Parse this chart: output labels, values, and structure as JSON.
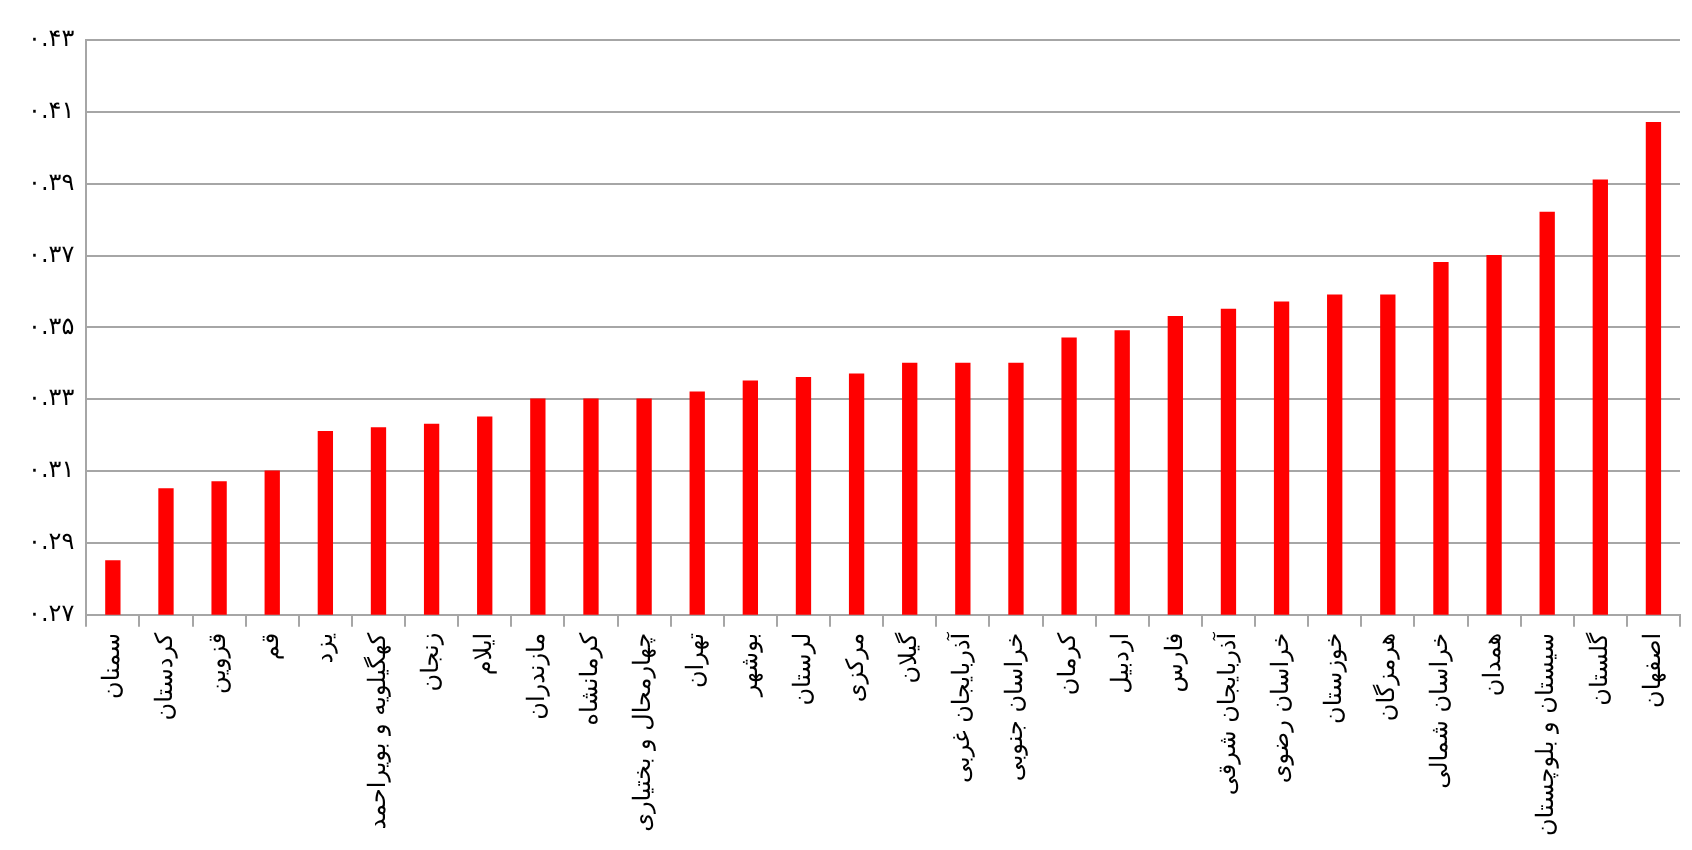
{
  "chart_data": {
    "type": "bar",
    "categories": [
      "سمنان",
      "کردستان",
      "قزوین",
      "قم",
      "یزد",
      "کهگیلویه و بویراحمد",
      "زنجان",
      "ایلام",
      "مازندران",
      "کرمانشاه",
      "چهارمحال و بختیاری",
      "تهران",
      "بوشهر",
      "لرستان",
      "مرکزی",
      "گیلان",
      "آذربایجان غربی",
      "خراسان جنوبی",
      "کرمان",
      "اردبیل",
      "فارس",
      "آذربایجان شرقی",
      "خراسان رضوی",
      "خوزستان",
      "هرمزگان",
      "خراسان شمالی",
      "همدان",
      "سیستان و بلوچستان",
      "گلستان",
      "اصفهان"
    ],
    "values": [
      0.285,
      0.305,
      0.307,
      0.31,
      0.321,
      0.322,
      0.323,
      0.325,
      0.33,
      0.33,
      0.33,
      0.332,
      0.335,
      0.336,
      0.337,
      0.34,
      0.34,
      0.34,
      0.347,
      0.349,
      0.353,
      0.355,
      0.357,
      0.359,
      0.359,
      0.368,
      0.37,
      0.382,
      0.391,
      0.407
    ],
    "color": "#ff0000",
    "ylim": [
      0.27,
      0.43
    ],
    "yticks": [
      {
        "value": 0.27,
        "label": "۰.۲۷"
      },
      {
        "value": 0.29,
        "label": "۰.۲۹"
      },
      {
        "value": 0.31,
        "label": "۰.۳۱"
      },
      {
        "value": 0.33,
        "label": "۰.۳۳"
      },
      {
        "value": 0.35,
        "label": "۰.۳۵"
      },
      {
        "value": 0.37,
        "label": "۰.۳۷"
      },
      {
        "value": 0.39,
        "label": "۰.۳۹"
      },
      {
        "value": 0.41,
        "label": "۰.۴۱"
      },
      {
        "value": 0.43,
        "label": "۰.۴۳"
      }
    ],
    "grid": "y"
  }
}
